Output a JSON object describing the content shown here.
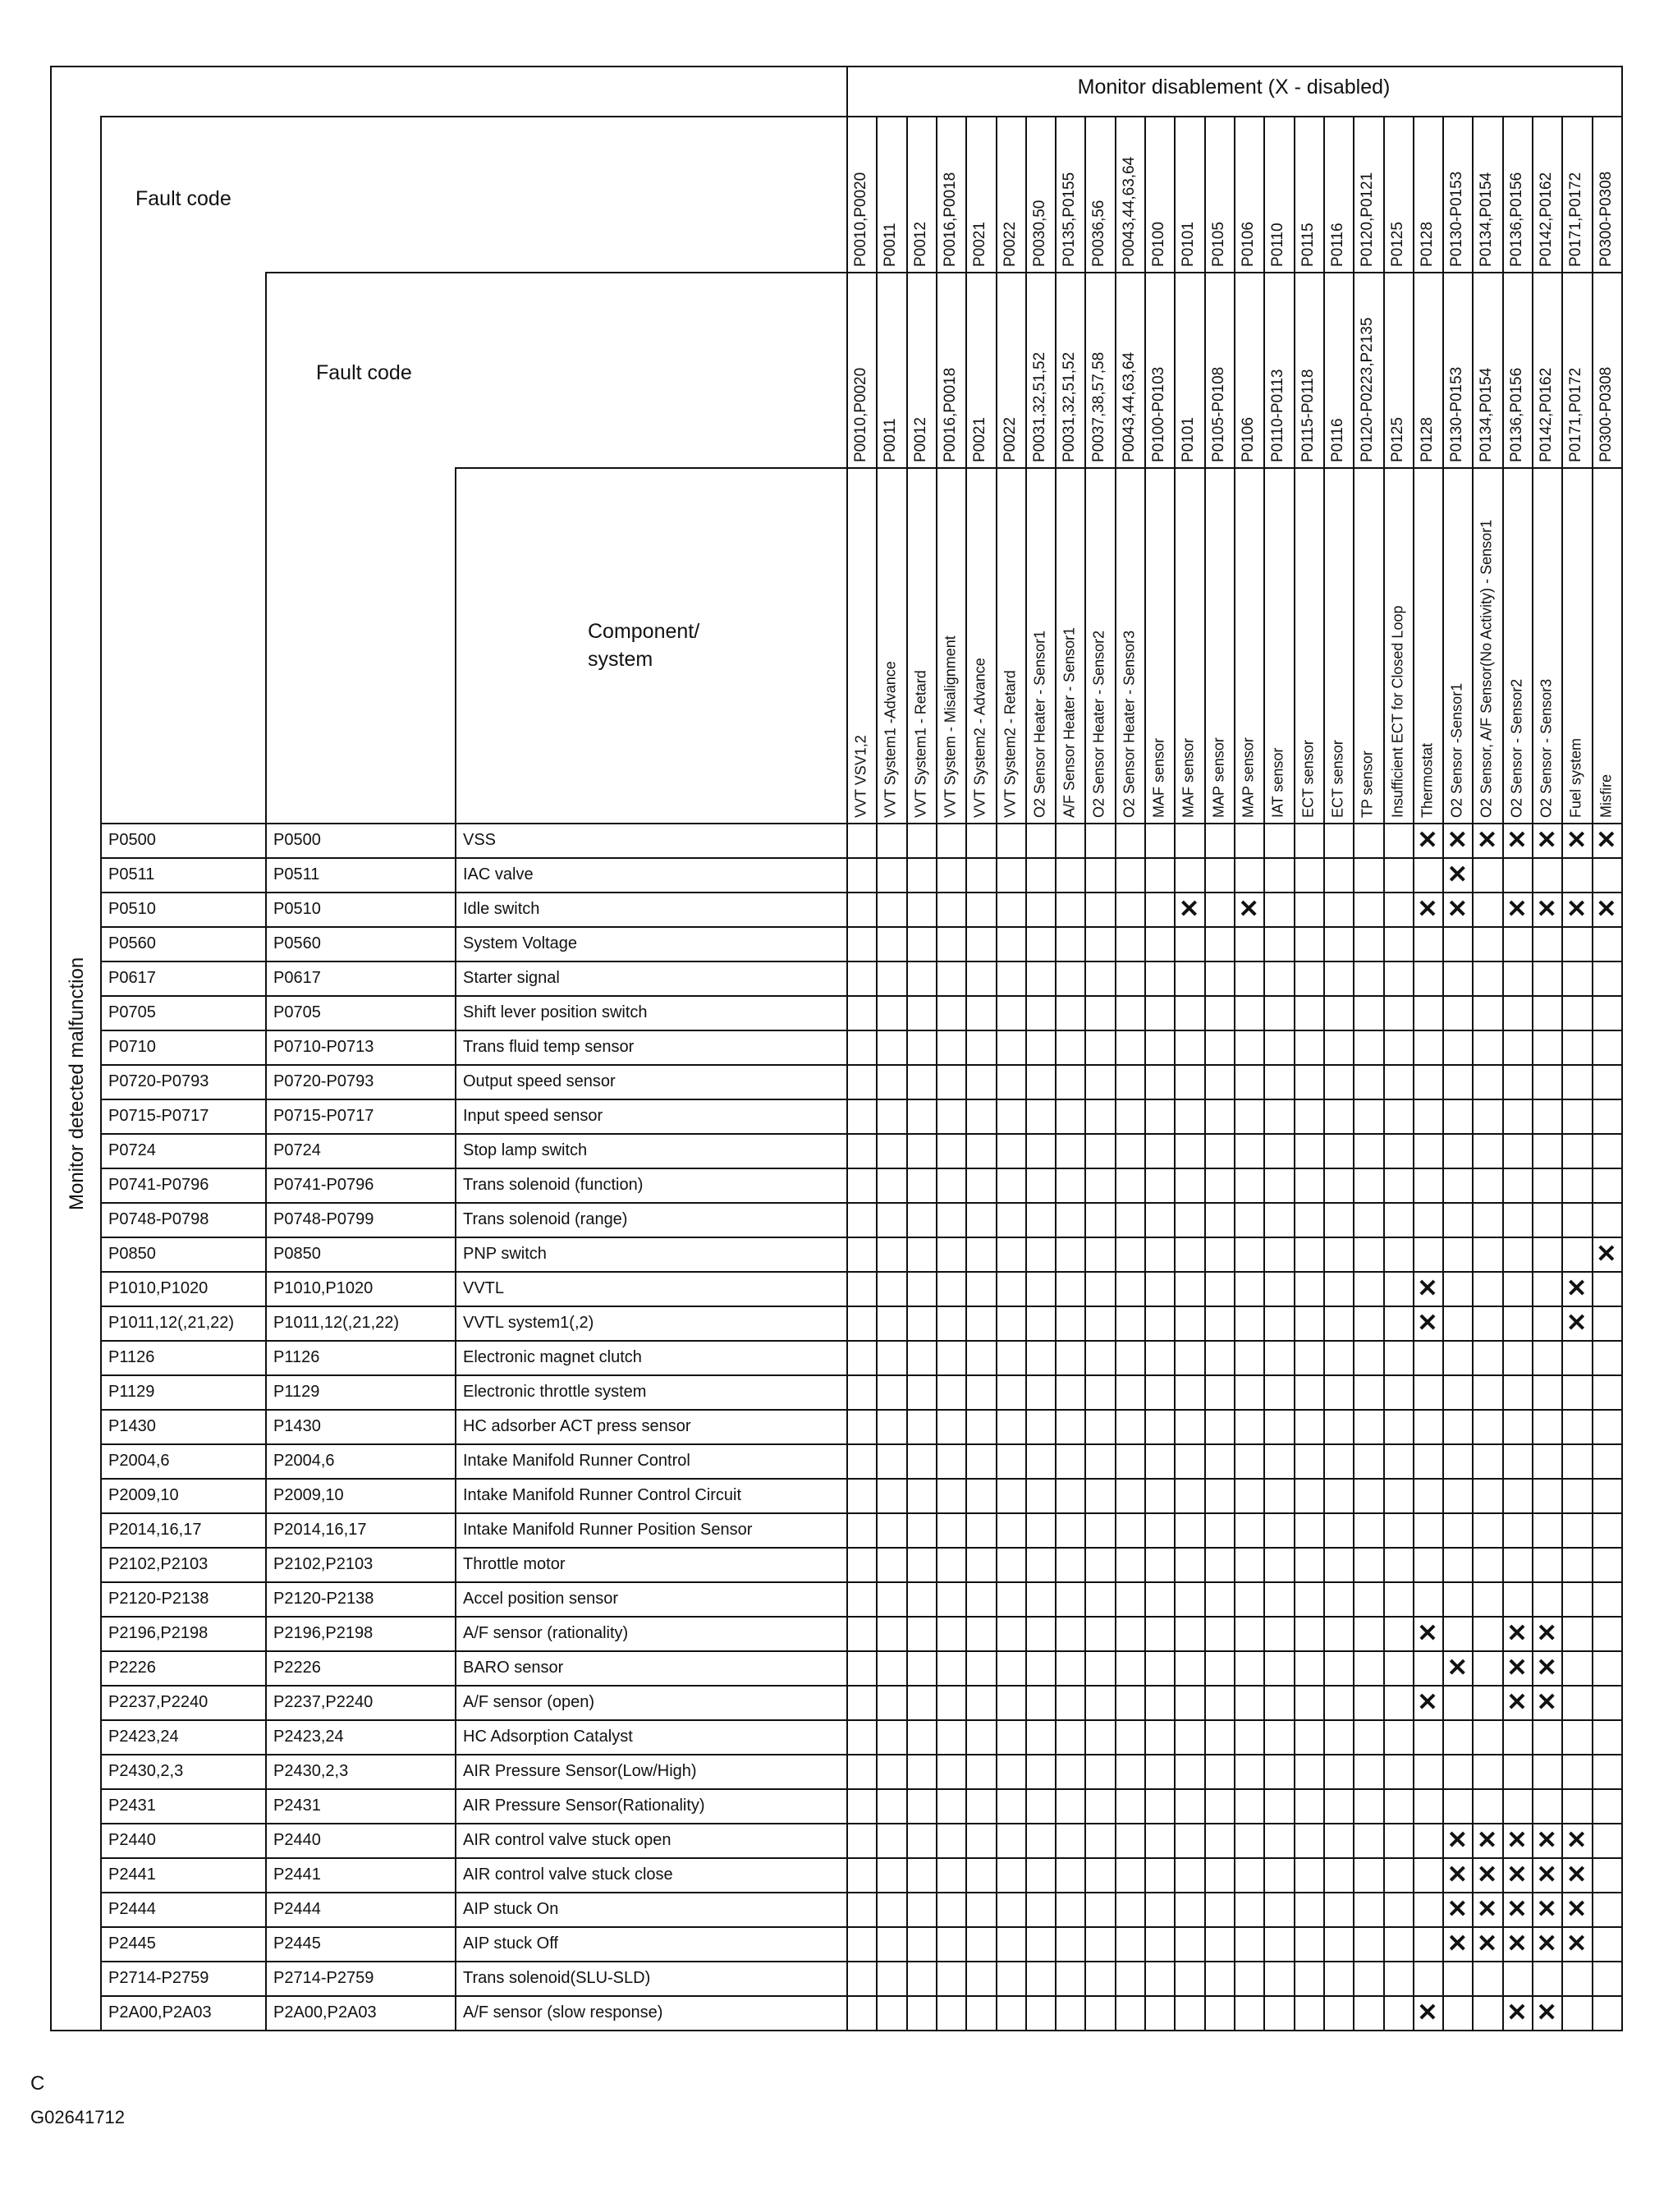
{
  "header": {
    "monitor_disablement": "Monitor disablement (X - disabled)",
    "fault_code_1": "Fault code",
    "fault_code_2": "Fault code",
    "component_system": "Component/\nsystem",
    "row_axis_label": "Monitor detected malfunction"
  },
  "columns": [
    {
      "code1": "P0010,P0020",
      "code2": "P0010,P0020",
      "name": "VVT VSV1,2"
    },
    {
      "code1": "P0011",
      "code2": "P0011",
      "name": "VVT System1 -Advance"
    },
    {
      "code1": "P0012",
      "code2": "P0012",
      "name": "VVT System1 - Retard"
    },
    {
      "code1": "P0016,P0018",
      "code2": "P0016,P0018",
      "name": "VVT System - Misalignment"
    },
    {
      "code1": "P0021",
      "code2": "P0021",
      "name": "VVT System2 - Advance"
    },
    {
      "code1": "P0022",
      "code2": "P0022",
      "name": "VVT System2 - Retard"
    },
    {
      "code1": "P0030,50",
      "code2": "P0031,32,51,52",
      "name": "O2 Sensor Heater - Sensor1"
    },
    {
      "code1": "P0135,P0155",
      "code2": "P0031,32,51,52",
      "name": "A/F Sensor Heater - Sensor1"
    },
    {
      "code1": "P0036,56",
      "code2": "P0037,38,57,58",
      "name": "O2 Sensor Heater - Sensor2"
    },
    {
      "code1": "P0043,44,63,64",
      "code2": "P0043,44,63,64",
      "name": "O2 Sensor Heater - Sensor3"
    },
    {
      "code1": "P0100",
      "code2": "P0100-P0103",
      "name": "MAF sensor"
    },
    {
      "code1": "P0101",
      "code2": "P0101",
      "name": "MAF sensor"
    },
    {
      "code1": "P0105",
      "code2": "P0105-P0108",
      "name": "MAP sensor"
    },
    {
      "code1": "P0106",
      "code2": "P0106",
      "name": "MAP sensor"
    },
    {
      "code1": "P0110",
      "code2": "P0110-P0113",
      "name": "IAT sensor"
    },
    {
      "code1": "P0115",
      "code2": "P0115-P0118",
      "name": "ECT sensor"
    },
    {
      "code1": "P0116",
      "code2": "P0116",
      "name": "ECT sensor"
    },
    {
      "code1": "P0120,P0121",
      "code2": "P0120-P0223,P2135",
      "name": "TP sensor"
    },
    {
      "code1": "P0125",
      "code2": "P0125",
      "name": "Insufficient ECT for Closed Loop"
    },
    {
      "code1": "P0128",
      "code2": "P0128",
      "name": "Thermostat"
    },
    {
      "code1": "P0130-P0153",
      "code2": "P0130-P0153",
      "name": "O2 Sensor -Sensor1"
    },
    {
      "code1": "P0134,P0154",
      "code2": "P0134,P0154",
      "name": "O2 Sensor, A/F Sensor(No Activity) - Sensor1"
    },
    {
      "code1": "P0136,P0156",
      "code2": "P0136,P0156",
      "name": "O2 Sensor - Sensor2"
    },
    {
      "code1": "P0142,P0162",
      "code2": "P0142,P0162",
      "name": "O2 Sensor - Sensor3"
    },
    {
      "code1": "P0171,P0172",
      "code2": "P0171,P0172",
      "name": "Fuel system"
    },
    {
      "code1": "P0300-P0308",
      "code2": "P0300-P0308",
      "name": "Misfire"
    }
  ],
  "mark": "✕",
  "rows": [
    {
      "code1": "P0500",
      "code2": "P0500",
      "component": "VSS",
      "disabled": [
        20,
        21,
        22,
        23,
        24,
        25,
        26
      ]
    },
    {
      "code1": "P0511",
      "code2": "P0511",
      "component": "IAC valve",
      "disabled": [
        21
      ]
    },
    {
      "code1": "P0510",
      "code2": "P0510",
      "component": "Idle switch",
      "disabled": [
        12,
        14,
        20,
        21,
        23,
        24,
        25,
        26
      ]
    },
    {
      "code1": "P0560",
      "code2": "P0560",
      "component": "System Voltage",
      "disabled": []
    },
    {
      "code1": "P0617",
      "code2": "P0617",
      "component": "Starter signal",
      "disabled": []
    },
    {
      "code1": "P0705",
      "code2": "P0705",
      "component": "Shift lever position switch",
      "disabled": []
    },
    {
      "code1": "P0710",
      "code2": "P0710-P0713",
      "component": "Trans fluid temp sensor",
      "disabled": []
    },
    {
      "code1": "P0720-P0793",
      "code2": "P0720-P0793",
      "component": "Output speed sensor",
      "disabled": []
    },
    {
      "code1": "P0715-P0717",
      "code2": "P0715-P0717",
      "component": "Input speed sensor",
      "disabled": []
    },
    {
      "code1": "P0724",
      "code2": "P0724",
      "component": "Stop lamp switch",
      "disabled": []
    },
    {
      "code1": "P0741-P0796",
      "code2": "P0741-P0796",
      "component": "Trans solenoid (function)",
      "disabled": []
    },
    {
      "code1": "P0748-P0798",
      "code2": "P0748-P0799",
      "component": "Trans solenoid (range)",
      "disabled": []
    },
    {
      "code1": "P0850",
      "code2": "P0850",
      "component": "PNP switch",
      "disabled": [
        26
      ]
    },
    {
      "code1": "P1010,P1020",
      "code2": "P1010,P1020",
      "component": "VVTL",
      "disabled": [
        20,
        25
      ]
    },
    {
      "code1": "P1011,12(,21,22)",
      "code2": "P1011,12(,21,22)",
      "component": "VVTL system1(,2)",
      "disabled": [
        20,
        25
      ]
    },
    {
      "code1": "P1126",
      "code2": "P1126",
      "component": "Electronic magnet clutch",
      "disabled": []
    },
    {
      "code1": "P1129",
      "code2": "P1129",
      "component": "Electronic throttle system",
      "disabled": []
    },
    {
      "code1": "P1430",
      "code2": "P1430",
      "component": "HC adsorber ACT press sensor",
      "disabled": []
    },
    {
      "code1": "P2004,6",
      "code2": "P2004,6",
      "component": "Intake Manifold Runner Control",
      "disabled": []
    },
    {
      "code1": "P2009,10",
      "code2": "P2009,10",
      "component": "Intake Manifold Runner Control Circuit",
      "disabled": []
    },
    {
      "code1": "P2014,16,17",
      "code2": "P2014,16,17",
      "component": "Intake Manifold Runner Position Sensor",
      "disabled": []
    },
    {
      "code1": "P2102,P2103",
      "code2": "P2102,P2103",
      "component": "Throttle motor",
      "disabled": []
    },
    {
      "code1": "P2120-P2138",
      "code2": "P2120-P2138",
      "component": "Accel position sensor",
      "disabled": []
    },
    {
      "code1": "P2196,P2198",
      "code2": "P2196,P2198",
      "component": "A/F sensor (rationality)",
      "disabled": [
        20,
        23,
        24
      ]
    },
    {
      "code1": "P2226",
      "code2": "P2226",
      "component": "BARO sensor",
      "disabled": [
        21,
        23,
        24
      ]
    },
    {
      "code1": "P2237,P2240",
      "code2": "P2237,P2240",
      "component": "A/F sensor (open)",
      "disabled": [
        20,
        23,
        24
      ]
    },
    {
      "code1": "P2423,24",
      "code2": "P2423,24",
      "component": "HC Adsorption Catalyst",
      "disabled": []
    },
    {
      "code1": "P2430,2,3",
      "code2": "P2430,2,3",
      "component": "AIR Pressure Sensor(Low/High)",
      "disabled": []
    },
    {
      "code1": "P2431",
      "code2": "P2431",
      "component": "AIR Pressure Sensor(Rationality)",
      "disabled": []
    },
    {
      "code1": "P2440",
      "code2": "P2440",
      "component": "AIR control valve stuck open",
      "disabled": [
        21,
        22,
        23,
        24,
        25
      ]
    },
    {
      "code1": "P2441",
      "code2": "P2441",
      "component": "AIR control valve stuck close",
      "disabled": [
        21,
        22,
        23,
        24,
        25
      ]
    },
    {
      "code1": "P2444",
      "code2": "P2444",
      "component": "AIP stuck On",
      "disabled": [
        21,
        22,
        23,
        24,
        25
      ]
    },
    {
      "code1": "P2445",
      "code2": "P2445",
      "component": "AIP stuck Off",
      "disabled": [
        21,
        22,
        23,
        24,
        25
      ]
    },
    {
      "code1": "P2714-P2759",
      "code2": "P2714-P2759",
      "component": "Trans solenoid(SLU-SLD)",
      "disabled": []
    },
    {
      "code1": "P2A00,P2A03",
      "code2": "P2A00,P2A03",
      "component": "A/F sensor (slow response)",
      "disabled": [
        20,
        23,
        24
      ]
    }
  ],
  "footer": {
    "letter": "C",
    "figure_id": "G02641712"
  }
}
